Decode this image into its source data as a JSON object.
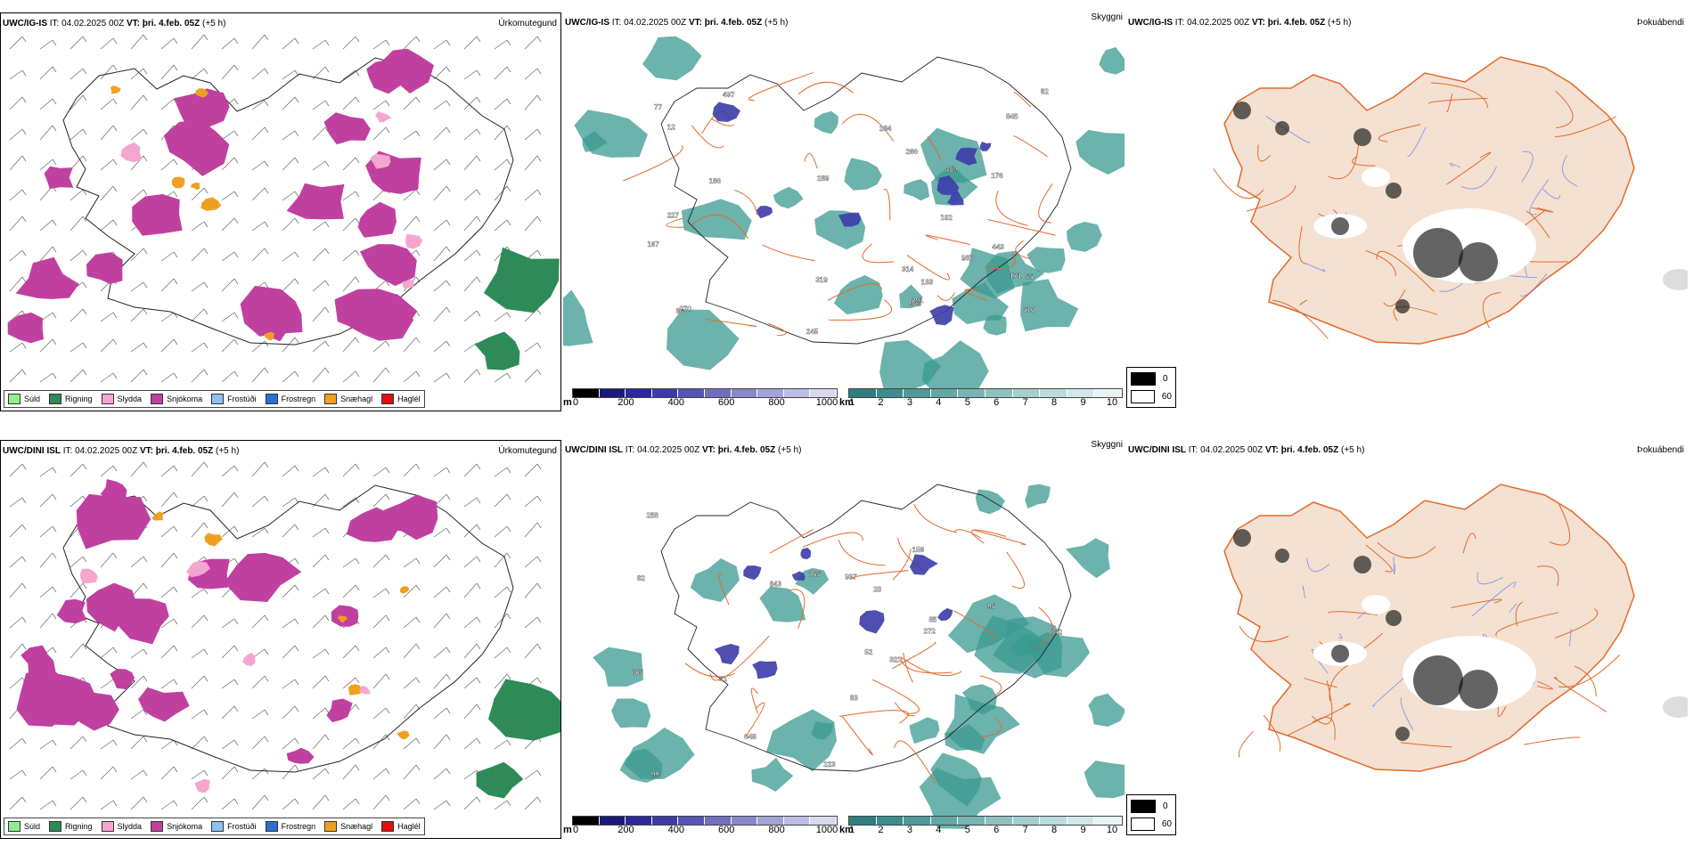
{
  "rows": [
    {
      "model": "UWC/IG-IS",
      "it_label": "IT:",
      "it_value": "04.02.2025 00Z",
      "vt_label": "VT:",
      "vt_value": "þri. 4.feb. 05Z",
      "lead": "(+5 h)",
      "precip_title": "Úrkomutegund",
      "cloud_title": "Skyggni",
      "fog_title": "Þokuábendi",
      "cloud_labels": [
        "176",
        "12",
        "497",
        "55",
        "923",
        "167",
        "845",
        "289",
        "987",
        "82",
        "86",
        "443",
        "227",
        "319",
        "266",
        "77",
        "245",
        "291",
        "616",
        "469",
        "133",
        "102",
        "314",
        "284",
        "171",
        "186",
        "270"
      ]
    },
    {
      "model": "UWC/DINI ISL",
      "it_label": "IT:",
      "it_value": "04.02.2025 00Z",
      "vt_label": "VT:",
      "vt_value": "þri. 4.feb. 05Z",
      "lead": "(+5 h)",
      "precip_title": "Úrkomutegund",
      "cloud_title": "Skyggni",
      "fog_title": "Þokuábendi",
      "cloud_labels": [
        "843",
        "997",
        "223",
        "842",
        "648",
        "20",
        "83",
        "99",
        "272",
        "258",
        "165",
        "31",
        "52",
        "321",
        "156",
        "82",
        "85",
        "95",
        "865"
      ]
    }
  ],
  "precip_legend": [
    {
      "label": "Súld",
      "color": "#90ee90"
    },
    {
      "label": "Rigning",
      "color": "#2e8b57"
    },
    {
      "label": "Slydda",
      "color": "#f4a6d0"
    },
    {
      "label": "Snjókoma",
      "color": "#c040a0"
    },
    {
      "label": "Frostúði",
      "color": "#90c0f0"
    },
    {
      "label": "Frostregn",
      "color": "#2a70d0"
    },
    {
      "label": "Snæhagl",
      "color": "#f0a020"
    },
    {
      "label": "Haglél",
      "color": "#e01010"
    }
  ],
  "cloudbase_scale": {
    "unit": "m",
    "ticks": [
      "0",
      "200",
      "400",
      "600",
      "800",
      "1000"
    ],
    "colors": [
      "#000000",
      "#1a1a7a",
      "#2a2a9a",
      "#3c3ca8",
      "#5555b5",
      "#6f6fc0",
      "#8888cc",
      "#a3a3d8",
      "#bdbde3",
      "#d8d8ee"
    ]
  },
  "visibility_scale": {
    "unit": "km",
    "ticks": [
      "1",
      "2",
      "3",
      "4",
      "5",
      "6",
      "7",
      "8",
      "9",
      "10"
    ],
    "colors": [
      "#2e8080",
      "#3a8d8d",
      "#4d9a9a",
      "#62a8a8",
      "#78b5b5",
      "#8ec2c2",
      "#a4cfcf",
      "#badcdc",
      "#d0e8e8",
      "#e8f4f4"
    ]
  },
  "fog_legend": [
    {
      "value": "0",
      "color": "#000000"
    },
    {
      "value": "60",
      "color": "#ffffff"
    }
  ],
  "colors": {
    "land": "#f4e1d2",
    "roads": "#e36a2a",
    "rivers": "#7a8ef0",
    "rain": "#2e8b57",
    "snow": "#c040a0",
    "teal": "#3a9a90"
  }
}
